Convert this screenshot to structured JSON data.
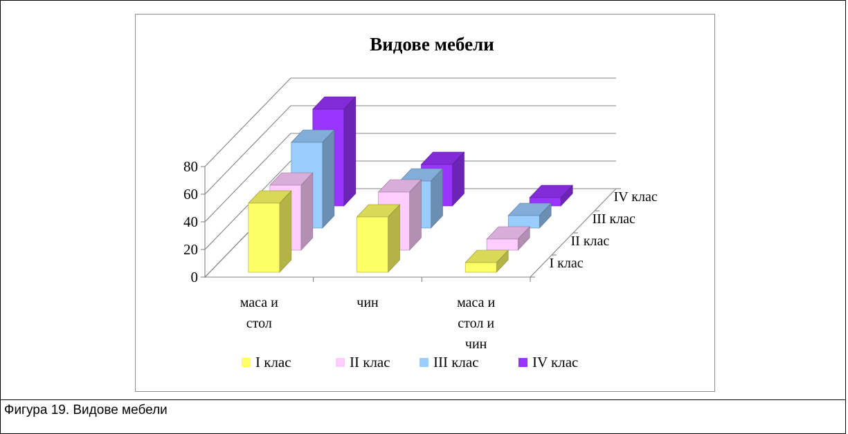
{
  "caption": "Фигура 19. Видове мебели",
  "colors": {
    "series": [
      "#ffff66",
      "#ffccff",
      "#99ccff",
      "#9933ff"
    ],
    "grid": "#808080",
    "axis": "#808080",
    "frame": "#000000"
  },
  "chart_data": {
    "type": "bar",
    "subtype": "3d-clustered-column",
    "title": "Видове мебели",
    "categories": [
      [
        "маса и",
        "стол"
      ],
      [
        "чин"
      ],
      [
        "маса и",
        "стол и",
        "чин"
      ]
    ],
    "series": [
      {
        "name": "I клас",
        "values": [
          50,
          40,
          7
        ]
      },
      {
        "name": "II клас",
        "values": [
          47,
          42,
          8
        ]
      },
      {
        "name": "III клас",
        "values": [
          62,
          34,
          9
        ]
      },
      {
        "name": "IV клас",
        "values": [
          70,
          30,
          6
        ]
      }
    ],
    "depth_labels": [
      "I клас",
      "II клас",
      "III клас",
      "IV клас"
    ],
    "yticks": [
      0,
      20,
      40,
      60,
      80
    ],
    "ylim": [
      0,
      80
    ],
    "grid": true,
    "legend": "bottom"
  }
}
